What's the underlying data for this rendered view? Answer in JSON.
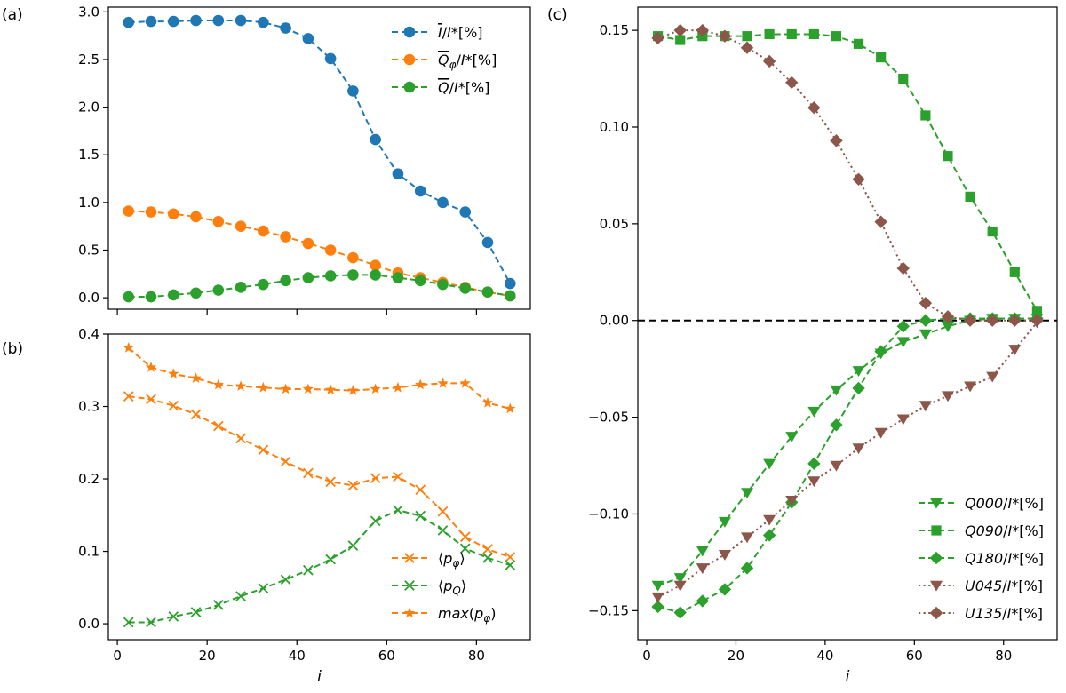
{
  "chart_data": [
    {
      "panel": "(a)",
      "type": "line",
      "x": [
        2.5,
        7.5,
        12.5,
        17.5,
        22.5,
        27.5,
        32.5,
        37.5,
        42.5,
        47.5,
        52.5,
        57.5,
        62.5,
        67.5,
        72.5,
        77.5,
        82.5,
        87.5
      ],
      "xlim": [
        -2,
        92
      ],
      "ylim": [
        -0.12,
        3.05
      ],
      "yticks": [
        0.0,
        0.5,
        1.0,
        1.5,
        2.0,
        2.5,
        3.0
      ],
      "ytick_labels": [
        "0.0",
        "0.5",
        "1.0",
        "1.5",
        "2.0",
        "2.5",
        "3.0"
      ],
      "xticks": [
        0,
        20,
        40,
        60,
        80
      ],
      "xtick_labels_shown": false,
      "legend": "top-right",
      "grid": false,
      "series": [
        {
          "name": "I̅/I*[%]",
          "color": "#1f77b4",
          "marker": "circle",
          "linestyle": "dashed",
          "values": [
            2.89,
            2.9,
            2.9,
            2.91,
            2.91,
            2.91,
            2.89,
            2.83,
            2.72,
            2.51,
            2.17,
            1.66,
            1.3,
            1.12,
            1.0,
            0.9,
            0.58,
            0.15
          ]
        },
        {
          "name": "Q̅φ/I*[%]",
          "color": "#ff7f0e",
          "marker": "circle",
          "linestyle": "dashed",
          "values": [
            0.91,
            0.9,
            0.88,
            0.85,
            0.8,
            0.75,
            0.7,
            0.64,
            0.57,
            0.5,
            0.42,
            0.34,
            0.26,
            0.21,
            0.16,
            0.11,
            0.06,
            0.02
          ]
        },
        {
          "name": "Q̅/I*[%]",
          "color": "#2ca02c",
          "marker": "circle",
          "linestyle": "dashed",
          "values": [
            0.01,
            0.01,
            0.03,
            0.05,
            0.08,
            0.11,
            0.14,
            0.18,
            0.21,
            0.23,
            0.24,
            0.24,
            0.21,
            0.18,
            0.14,
            0.1,
            0.06,
            0.02
          ]
        }
      ]
    },
    {
      "panel": "(b)",
      "type": "line",
      "x": [
        2.5,
        7.5,
        12.5,
        17.5,
        22.5,
        27.5,
        32.5,
        37.5,
        42.5,
        47.5,
        52.5,
        57.5,
        62.5,
        67.5,
        72.5,
        77.5,
        82.5,
        87.5
      ],
      "xlim": [
        -2,
        92
      ],
      "ylim": [
        -0.022,
        0.4
      ],
      "yticks": [
        0.0,
        0.1,
        0.2,
        0.3,
        0.4
      ],
      "ytick_labels": [
        "0.0",
        "0.1",
        "0.2",
        "0.3",
        "0.4"
      ],
      "xticks": [
        0,
        20,
        40,
        60,
        80
      ],
      "xtick_labels": [
        "0",
        "20",
        "40",
        "60",
        "80"
      ],
      "xlabel": "i",
      "legend": "bottom-right",
      "grid": false,
      "series": [
        {
          "name": "⟨pφ⟩",
          "color": "#ff7f0e",
          "marker": "x",
          "linestyle": "dashed",
          "values": [
            0.314,
            0.31,
            0.301,
            0.289,
            0.273,
            0.256,
            0.24,
            0.224,
            0.208,
            0.196,
            0.191,
            0.201,
            0.203,
            0.185,
            0.155,
            0.12,
            0.103,
            0.092
          ]
        },
        {
          "name": "⟨pQ⟩",
          "color": "#2ca02c",
          "marker": "x",
          "linestyle": "dashed",
          "values": [
            0.002,
            0.002,
            0.01,
            0.016,
            0.026,
            0.038,
            0.049,
            0.061,
            0.074,
            0.089,
            0.108,
            0.142,
            0.157,
            0.149,
            0.129,
            0.104,
            0.091,
            0.081
          ]
        },
        {
          "name": "max(pφ)",
          "color": "#ff7f0e",
          "marker": "star",
          "linestyle": "dashed",
          "values": [
            0.381,
            0.354,
            0.345,
            0.339,
            0.33,
            0.328,
            0.326,
            0.324,
            0.324,
            0.323,
            0.322,
            0.324,
            0.326,
            0.33,
            0.332,
            0.332,
            0.305,
            0.297
          ]
        }
      ]
    },
    {
      "panel": "(c)",
      "type": "line",
      "x": [
        2.5,
        7.5,
        12.5,
        17.5,
        22.5,
        27.5,
        32.5,
        37.5,
        42.5,
        47.5,
        52.5,
        57.5,
        62.5,
        67.5,
        72.5,
        77.5,
        82.5,
        87.5
      ],
      "xlim": [
        -2,
        92
      ],
      "ylim": [
        -0.165,
        0.162
      ],
      "yticks": [
        -0.15,
        -0.1,
        -0.05,
        0.0,
        0.05,
        0.1,
        0.15
      ],
      "ytick_labels": [
        "−0.15",
        "−0.10",
        "−0.05",
        "0.00",
        "0.05",
        "0.10",
        "0.15"
      ],
      "xticks": [
        0,
        20,
        40,
        60,
        80
      ],
      "xtick_labels": [
        "0",
        "20",
        "40",
        "60",
        "80"
      ],
      "xlabel": "i",
      "reference_line": {
        "y": 0.0,
        "color": "#000000",
        "linestyle": "dashed"
      },
      "legend": "bottom-right",
      "grid": false,
      "series": [
        {
          "name": "Q000/I*[%]",
          "color": "#2ca02c",
          "marker": "triangle-down",
          "linestyle": "dashed",
          "values": [
            -0.137,
            -0.133,
            -0.119,
            -0.104,
            -0.089,
            -0.074,
            -0.06,
            -0.047,
            -0.036,
            -0.026,
            -0.017,
            -0.011,
            -0.007,
            -0.003,
            0.0,
            0.001,
            0.001,
            0.001
          ]
        },
        {
          "name": "Q090/I*[%]",
          "color": "#2ca02c",
          "marker": "square",
          "linestyle": "dashed",
          "values": [
            0.147,
            0.145,
            0.147,
            0.147,
            0.147,
            0.148,
            0.148,
            0.148,
            0.147,
            0.143,
            0.136,
            0.125,
            0.106,
            0.085,
            0.064,
            0.046,
            0.025,
            0.005
          ]
        },
        {
          "name": "Q180/I*[%]",
          "color": "#2ca02c",
          "marker": "diamond",
          "linestyle": "dashed",
          "values": [
            -0.148,
            -0.151,
            -0.145,
            -0.139,
            -0.128,
            -0.111,
            -0.094,
            -0.074,
            -0.054,
            -0.035,
            -0.016,
            -0.003,
            0.0,
            0.001,
            0.001,
            0.001,
            0.001,
            0.001
          ]
        },
        {
          "name": "U045/I*[%]",
          "color": "#8c564b",
          "marker": "triangle-down",
          "linestyle": "dotted",
          "values": [
            -0.143,
            -0.137,
            -0.128,
            -0.121,
            -0.112,
            -0.103,
            -0.093,
            -0.083,
            -0.075,
            -0.066,
            -0.058,
            -0.051,
            -0.044,
            -0.039,
            -0.034,
            -0.029,
            -0.015,
            -0.001
          ]
        },
        {
          "name": "U135/I*[%]",
          "color": "#8c564b",
          "marker": "diamond",
          "linestyle": "dotted",
          "values": [
            0.146,
            0.15,
            0.15,
            0.147,
            0.141,
            0.134,
            0.123,
            0.11,
            0.093,
            0.073,
            0.051,
            0.027,
            0.009,
            0.002,
            0.0,
            0.0,
            0.0,
            0.0
          ]
        }
      ]
    }
  ]
}
